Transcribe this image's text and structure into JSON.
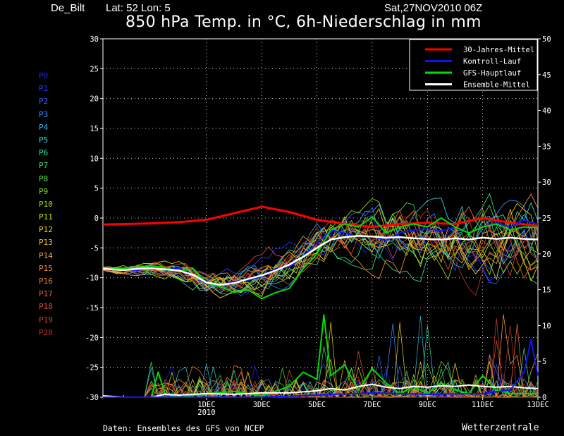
{
  "header": {
    "station": "De_Bilt",
    "latlon": "Lat: 52 Lon: 5",
    "datestamp": "Sat,27NOV2010 06Z"
  },
  "footer": {
    "source": "Daten: Ensembles des GFS von NCEP",
    "brand": "Wetterzentrale"
  },
  "members": [
    {
      "label": "P0",
      "color": "#2020ff"
    },
    {
      "label": "P1",
      "color": "#2838ff"
    },
    {
      "label": "P2",
      "color": "#3060ff"
    },
    {
      "label": "P3",
      "color": "#3890ff"
    },
    {
      "label": "P4",
      "color": "#30b8f0"
    },
    {
      "label": "P5",
      "color": "#30d8d8"
    },
    {
      "label": "P6",
      "color": "#30e0a0"
    },
    {
      "label": "P7",
      "color": "#40e070"
    },
    {
      "label": "P8",
      "color": "#50e040"
    },
    {
      "label": "P9",
      "color": "#70e020"
    },
    {
      "label": "P10",
      "color": "#a0e010"
    },
    {
      "label": "P11",
      "color": "#d0e010"
    },
    {
      "label": "P12",
      "color": "#f0d820"
    },
    {
      "label": "P13",
      "color": "#f8c030"
    },
    {
      "label": "P14",
      "color": "#f8a838"
    },
    {
      "label": "P15",
      "color": "#f89030"
    },
    {
      "label": "P16",
      "color": "#f07830"
    },
    {
      "label": "P17",
      "color": "#e86030"
    },
    {
      "label": "P18",
      "color": "#e05030"
    },
    {
      "label": "P19",
      "color": "#d04030"
    },
    {
      "label": "P20",
      "color": "#b83020"
    }
  ],
  "chart_data": {
    "type": "line",
    "title": "850 hPa Temp. in °C, 6h-Niederschlag in mm",
    "x_ticks": [
      {
        "day": 4,
        "label": "1DEC",
        "sub": "2010"
      },
      {
        "day": 6,
        "label": "3DEC",
        "sub": ""
      },
      {
        "day": 8,
        "label": "5DEC",
        "sub": ""
      },
      {
        "day": 10,
        "label": "7DEC",
        "sub": ""
      },
      {
        "day": 12,
        "label": "9DEC",
        "sub": ""
      },
      {
        "day": 14,
        "label": "11DEC",
        "sub": ""
      },
      {
        "day": 16,
        "label": "13DEC",
        "sub": ""
      }
    ],
    "x_range_days": [
      0.25,
      16
    ],
    "y_left": {
      "range": [
        -30,
        30
      ],
      "ticks": [
        30,
        25,
        20,
        15,
        10,
        5,
        0,
        -5,
        -10,
        -15,
        -20,
        -25,
        -30
      ]
    },
    "y_right": {
      "range": [
        0,
        50
      ],
      "ticks": [
        50,
        45,
        40,
        35,
        30,
        25,
        20,
        15,
        10,
        5,
        0
      ]
    },
    "grid": true,
    "legend_position": "top-right",
    "series": [
      {
        "name": "30-Jahres-Mittel",
        "color": "#ff0000",
        "width": 3,
        "points": [
          [
            0.25,
            -1.1
          ],
          [
            2,
            -0.9
          ],
          [
            3,
            -0.7
          ],
          [
            4,
            -0.3
          ],
          [
            5,
            0.8
          ],
          [
            6,
            1.9
          ],
          [
            7,
            1.0
          ],
          [
            8,
            -0.3
          ],
          [
            9,
            -1.0
          ],
          [
            10,
            -1.5
          ],
          [
            11,
            -1.0
          ],
          [
            12,
            -0.8
          ],
          [
            13,
            -1.0
          ],
          [
            14,
            0.0
          ],
          [
            15,
            -0.8
          ],
          [
            16,
            -1.3
          ]
        ]
      },
      {
        "name": "Kontroll-Lauf",
        "color": "#1010ff",
        "width": 2,
        "points": [
          [
            0.25,
            -8.5
          ],
          [
            1,
            -8.5
          ],
          [
            1.5,
            -8.8
          ],
          [
            2,
            -8.2
          ],
          [
            2.5,
            -8.6
          ],
          [
            3,
            -8.4
          ],
          [
            3.5,
            -9.5
          ],
          [
            4,
            -11.0
          ],
          [
            4.5,
            -11.3
          ],
          [
            5,
            -10.6
          ],
          [
            5.5,
            -10.4
          ],
          [
            6,
            -9.8
          ],
          [
            6.5,
            -8.5
          ],
          [
            7,
            -8.2
          ],
          [
            7.5,
            -6.4
          ],
          [
            8,
            -4.2
          ],
          [
            8.5,
            -2.0
          ],
          [
            9,
            -2.5
          ],
          [
            9.5,
            -3.2
          ],
          [
            10,
            -3.0
          ],
          [
            10.5,
            -3.8
          ],
          [
            11,
            -2.5
          ],
          [
            11.5,
            -2.0
          ],
          [
            12,
            -1.8
          ],
          [
            12.5,
            -2.2
          ],
          [
            13,
            -1.5
          ],
          [
            13.5,
            -2.5
          ],
          [
            14,
            -1.5
          ],
          [
            14.5,
            -0.8
          ],
          [
            15,
            -1.5
          ],
          [
            15.5,
            -0.4
          ],
          [
            16,
            -1.0
          ]
        ]
      },
      {
        "name": "GFS-Hauptlauf",
        "color": "#00dd00",
        "width": 2,
        "points": [
          [
            0.25,
            -8.5
          ],
          [
            1,
            -8.4
          ],
          [
            1.5,
            -8.3
          ],
          [
            2,
            -8.0
          ],
          [
            2.5,
            -8.3
          ],
          [
            3,
            -8.9
          ],
          [
            3.5,
            -8.5
          ],
          [
            4,
            -10.9
          ],
          [
            4.5,
            -11.5
          ],
          [
            5,
            -12.4
          ],
          [
            5.5,
            -12.0
          ],
          [
            6,
            -13.5
          ],
          [
            6.5,
            -12.5
          ],
          [
            7,
            -11.8
          ],
          [
            7.5,
            -8.5
          ],
          [
            8,
            -6.0
          ],
          [
            8.5,
            -2.0
          ],
          [
            9,
            -1.0
          ],
          [
            9.5,
            -1.5
          ],
          [
            10,
            0.2
          ],
          [
            10.5,
            -2.5
          ],
          [
            11,
            -1.5
          ],
          [
            11.5,
            -1.0
          ],
          [
            12,
            -1.5
          ],
          [
            12.5,
            0.0
          ],
          [
            13,
            -1.5
          ],
          [
            13.5,
            -2.5
          ],
          [
            14,
            -1.5
          ],
          [
            14.5,
            -1.0
          ],
          [
            15,
            -2.0
          ],
          [
            15.5,
            -1.5
          ],
          [
            16,
            -1.6
          ]
        ]
      },
      {
        "name": "Ensemble-Mittel",
        "color": "#ffffff",
        "width": 2.5,
        "points": [
          [
            0.25,
            -8.5
          ],
          [
            1,
            -8.7
          ],
          [
            1.5,
            -8.5
          ],
          [
            2,
            -8.4
          ],
          [
            2.5,
            -8.6
          ],
          [
            3,
            -8.8
          ],
          [
            3.5,
            -9.5
          ],
          [
            4,
            -10.8
          ],
          [
            4.5,
            -11.2
          ],
          [
            5,
            -10.9
          ],
          [
            5.5,
            -10.2
          ],
          [
            6,
            -9.6
          ],
          [
            6.5,
            -8.8
          ],
          [
            7,
            -7.8
          ],
          [
            7.5,
            -6.5
          ],
          [
            8,
            -5.0
          ],
          [
            8.5,
            -3.6
          ],
          [
            9,
            -3.2
          ],
          [
            9.5,
            -3.0
          ],
          [
            10,
            -3.1
          ],
          [
            10.5,
            -3.3
          ],
          [
            11,
            -3.2
          ],
          [
            11.5,
            -3.4
          ],
          [
            12,
            -3.5
          ],
          [
            12.5,
            -3.6
          ],
          [
            13,
            -3.4
          ],
          [
            13.5,
            -3.6
          ],
          [
            14,
            -3.3
          ],
          [
            14.5,
            -3.5
          ],
          [
            15,
            -3.3
          ],
          [
            15.5,
            -3.5
          ],
          [
            16,
            -3.6
          ]
        ]
      }
    ],
    "precip_series": [
      {
        "name": "GFS-Hauptlauf",
        "color": "#00dd00",
        "width": 2,
        "points": [
          [
            0.25,
            0
          ],
          [
            1.5,
            0
          ],
          [
            2,
            0
          ],
          [
            2.25,
            3.5
          ],
          [
            2.5,
            0.5
          ],
          [
            3,
            0
          ],
          [
            4,
            0.5
          ],
          [
            5,
            0.8
          ],
          [
            6,
            0.2
          ],
          [
            7,
            1.5
          ],
          [
            7.5,
            3.5
          ],
          [
            8,
            2.5
          ],
          [
            8.25,
            11.5
          ],
          [
            8.5,
            3.0
          ],
          [
            9,
            4.5
          ],
          [
            9.5,
            1.0
          ],
          [
            10,
            4.0
          ],
          [
            10.5,
            2.0
          ],
          [
            11,
            0.5
          ],
          [
            11.5,
            1.5
          ],
          [
            12,
            0.5
          ],
          [
            12.5,
            2.0
          ],
          [
            13,
            1.0
          ],
          [
            13.5,
            0.5
          ],
          [
            14,
            3.0
          ],
          [
            14.5,
            1.0
          ],
          [
            15,
            0.5
          ],
          [
            16,
            0.5
          ]
        ]
      },
      {
        "name": "Ensemble-Mittel",
        "color": "#ffffff",
        "width": 2,
        "points": [
          [
            0.25,
            0.2
          ],
          [
            1,
            0
          ],
          [
            2,
            0
          ],
          [
            2.5,
            0.4
          ],
          [
            3,
            0.3
          ],
          [
            4,
            0.5
          ],
          [
            5,
            0.4
          ],
          [
            6,
            0.6
          ],
          [
            7,
            0.6
          ],
          [
            8,
            0.9
          ],
          [
            8.5,
            1.2
          ],
          [
            9,
            1.0
          ],
          [
            9.5,
            1.5
          ],
          [
            10,
            1.8
          ],
          [
            10.5,
            1.4
          ],
          [
            11,
            1.2
          ],
          [
            11.5,
            1.5
          ],
          [
            12,
            1.4
          ],
          [
            12.5,
            1.6
          ],
          [
            13,
            1.5
          ],
          [
            13.5,
            1.7
          ],
          [
            14,
            1.5
          ],
          [
            14.5,
            1.4
          ],
          [
            15,
            1.5
          ],
          [
            15.5,
            1.3
          ],
          [
            16,
            1.2
          ]
        ]
      },
      {
        "name": "Kontroll-Lauf",
        "color": "#1010ff",
        "width": 2,
        "points": [
          [
            0.25,
            0
          ],
          [
            6,
            0
          ],
          [
            8,
            0.3
          ],
          [
            10,
            0.6
          ],
          [
            12,
            0.4
          ],
          [
            14,
            0.5
          ],
          [
            15,
            1.0
          ],
          [
            15.5,
            3.5
          ],
          [
            15.75,
            8.0
          ],
          [
            16,
            3.0
          ]
        ]
      }
    ]
  },
  "legend": [
    {
      "name": "30-Jahres-Mittel",
      "color": "#ff0000"
    },
    {
      "name": "Kontroll-Lauf",
      "color": "#1010ff"
    },
    {
      "name": "GFS-Hauptlauf",
      "color": "#00dd00"
    },
    {
      "name": "Ensemble-Mittel",
      "color": "#ffffff"
    }
  ]
}
